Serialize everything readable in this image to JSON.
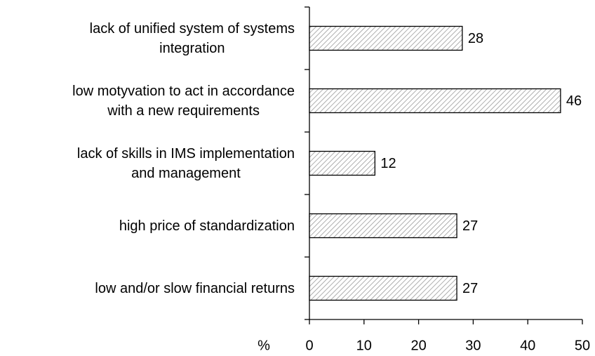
{
  "chart_data": {
    "type": "barh",
    "categories": [
      "lack of unified system of systems\nintegration",
      "low motyvation to act in accordance\nwith a new requirements",
      "lack of skills in IMS implementation\nand management",
      "high price of standardization",
      "low and/or slow financial returns"
    ],
    "values": [
      28,
      46,
      12,
      27,
      27
    ],
    "xlabel": "%",
    "xlim": [
      0,
      50
    ],
    "xticks": [
      0,
      10,
      20,
      30,
      40,
      50
    ],
    "color": "#ffffff",
    "hatch": "diagonal",
    "grid": false
  }
}
